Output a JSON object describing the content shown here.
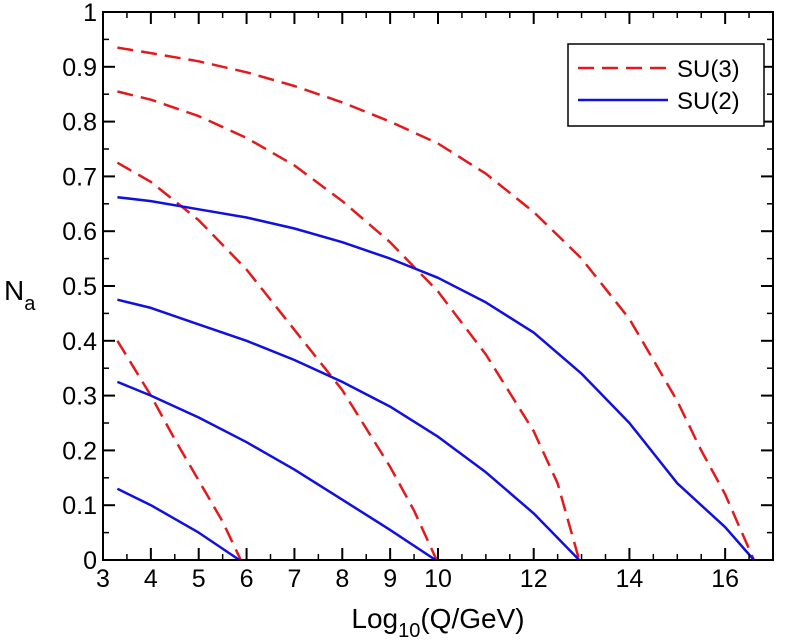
{
  "chart_data": {
    "type": "line",
    "title": "",
    "xlabel": {
      "base": "Log",
      "sub": "10",
      "rest": "(Q/GeV)"
    },
    "ylabel": {
      "base": "N",
      "sub": "a"
    },
    "xlim": [
      3,
      17
    ],
    "ylim": [
      0,
      1
    ],
    "x_ticks": [
      3,
      4,
      5,
      6,
      7,
      8,
      9,
      10,
      12,
      14,
      16
    ],
    "y_ticks": [
      0,
      0.1,
      0.2,
      0.3,
      0.4,
      0.5,
      0.6,
      0.7,
      0.8,
      0.9,
      1
    ],
    "y_tick_labels": [
      "0",
      "0.1",
      "0.2",
      "0.3",
      "0.4",
      "0.5",
      "0.6",
      "0.7",
      "0.8",
      "0.9",
      "1"
    ],
    "grid": false,
    "legend": {
      "position": "top-right",
      "entries": [
        {
          "label": "SU(3)",
          "color": "#e31a1c",
          "style": "dashed"
        },
        {
          "label": "SU(2)",
          "color": "#1010e0",
          "style": "solid"
        }
      ]
    },
    "series": [
      {
        "name": "SU(3)",
        "color": "#e31a1c",
        "style": "dashed",
        "x": [
          3.3,
          4,
          4.5,
          5,
          5.5,
          5.88
        ],
        "y": [
          0.4,
          0.3,
          0.22,
          0.145,
          0.07,
          0
        ]
      },
      {
        "name": "SU(3)",
        "color": "#e31a1c",
        "style": "dashed",
        "x": [
          3.3,
          4,
          5,
          6,
          7,
          8,
          9,
          9.5,
          9.97
        ],
        "y": [
          0.725,
          0.69,
          0.62,
          0.53,
          0.42,
          0.31,
          0.17,
          0.09,
          0
        ]
      },
      {
        "name": "SU(3)",
        "color": "#e31a1c",
        "style": "dashed",
        "x": [
          3.3,
          4,
          5,
          6,
          7,
          8,
          9,
          10,
          11,
          12,
          12.5,
          12.95
        ],
        "y": [
          0.855,
          0.84,
          0.81,
          0.77,
          0.72,
          0.655,
          0.58,
          0.49,
          0.375,
          0.235,
          0.14,
          0
        ]
      },
      {
        "name": "SU(3)",
        "color": "#e31a1c",
        "style": "dashed",
        "x": [
          3.3,
          4,
          5,
          6,
          7,
          8,
          9,
          10,
          11,
          12,
          13,
          14,
          15,
          15.5,
          16,
          16.6
        ],
        "y": [
          0.935,
          0.925,
          0.91,
          0.89,
          0.865,
          0.835,
          0.8,
          0.76,
          0.705,
          0.635,
          0.55,
          0.44,
          0.29,
          0.2,
          0.12,
          0
        ]
      },
      {
        "name": "SU(2)",
        "color": "#1010e0",
        "style": "solid",
        "x": [
          3.3,
          4,
          5,
          5.85
        ],
        "y": [
          0.13,
          0.1,
          0.05,
          0
        ]
      },
      {
        "name": "SU(2)",
        "color": "#1010e0",
        "style": "solid",
        "x": [
          3.3,
          4,
          5,
          6,
          7,
          8,
          9,
          9.95
        ],
        "y": [
          0.325,
          0.3,
          0.26,
          0.215,
          0.165,
          0.11,
          0.055,
          0
        ]
      },
      {
        "name": "SU(2)",
        "color": "#1010e0",
        "style": "solid",
        "x": [
          3.3,
          4,
          5,
          6,
          7,
          8,
          9,
          10,
          11,
          12,
          12.95
        ],
        "y": [
          0.475,
          0.46,
          0.43,
          0.4,
          0.365,
          0.325,
          0.28,
          0.225,
          0.16,
          0.085,
          0
        ]
      },
      {
        "name": "SU(2)",
        "color": "#1010e0",
        "style": "solid",
        "x": [
          3.3,
          4,
          5,
          6,
          7,
          8,
          9,
          10,
          11,
          12,
          13,
          14,
          15,
          16,
          16.6
        ],
        "y": [
          0.662,
          0.655,
          0.64,
          0.625,
          0.605,
          0.58,
          0.55,
          0.515,
          0.47,
          0.415,
          0.34,
          0.25,
          0.14,
          0.06,
          0
        ]
      }
    ]
  }
}
